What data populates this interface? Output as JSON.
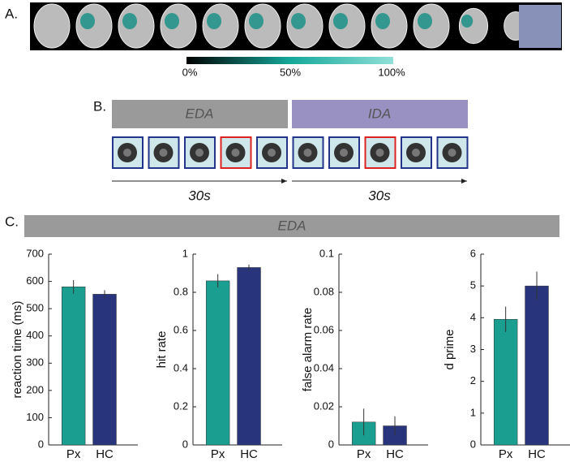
{
  "panel_labels": [
    "A.",
    "B.",
    "C."
  ],
  "colorbar": {
    "labels": [
      "0%",
      "50%",
      "100%"
    ]
  },
  "timeline": {
    "blocks": [
      "EDA",
      "IDA"
    ],
    "durations": [
      "30s",
      "30s"
    ]
  },
  "panel_c_header": "EDA",
  "chart_data": [
    {
      "type": "bar",
      "ylabel": "reaction time (ms)",
      "categories": [
        "Px",
        "HC"
      ],
      "values": [
        580,
        553
      ],
      "errors": [
        25,
        15
      ],
      "colors": [
        "#1a9e8f",
        "#28357d"
      ],
      "ylim": [
        0,
        700
      ],
      "yticks": [
        0,
        100,
        200,
        300,
        400,
        500,
        600,
        700
      ]
    },
    {
      "type": "bar",
      "ylabel": "hit rate",
      "categories": [
        "Px",
        "HC"
      ],
      "values": [
        0.86,
        0.93
      ],
      "errors": [
        0.035,
        0.015
      ],
      "colors": [
        "#1a9e8f",
        "#28357d"
      ],
      "ylim": [
        0,
        1
      ],
      "yticks": [
        0,
        0.2,
        0.4,
        0.6,
        0.8,
        1
      ]
    },
    {
      "type": "bar",
      "ylabel": "false alarm rate",
      "categories": [
        "Px",
        "HC"
      ],
      "values": [
        0.012,
        0.01
      ],
      "errors": [
        0.007,
        0.005
      ],
      "colors": [
        "#1a9e8f",
        "#28357d"
      ],
      "ylim": [
        0,
        0.1
      ],
      "yticks": [
        0,
        0.02,
        0.04,
        0.06,
        0.08,
        0.1
      ]
    },
    {
      "type": "bar",
      "ylabel": "d prime",
      "categories": [
        "Px",
        "HC"
      ],
      "values": [
        3.95,
        5.0
      ],
      "errors": [
        0.4,
        0.45
      ],
      "colors": [
        "#1a9e8f",
        "#28357d"
      ],
      "ylim": [
        0,
        6
      ],
      "yticks": [
        0,
        1,
        2,
        3,
        4,
        5,
        6
      ]
    }
  ]
}
